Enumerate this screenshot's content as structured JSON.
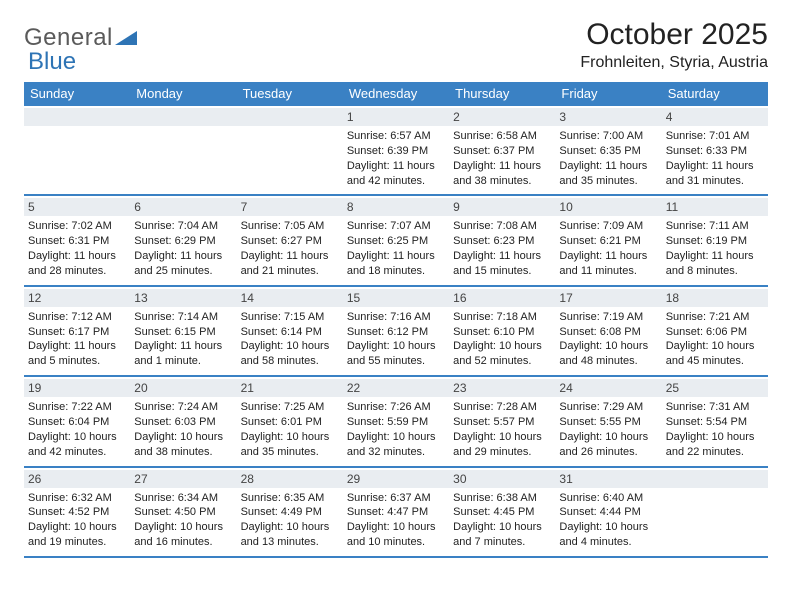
{
  "logo": {
    "text1": "General",
    "text2": "Blue"
  },
  "title": "October 2025",
  "location": "Frohnleiten, Styria, Austria",
  "colors": {
    "header_bg": "#3a81c4",
    "band_bg": "#e9edf1",
    "rule": "#3a81c4",
    "text": "#222222",
    "logo_gray": "#5a5a5a",
    "logo_blue": "#2e74b5"
  },
  "day_headers": [
    "Sunday",
    "Monday",
    "Tuesday",
    "Wednesday",
    "Thursday",
    "Friday",
    "Saturday"
  ],
  "weeks": [
    [
      {
        "n": "",
        "sr": "",
        "ss": "",
        "dl": ""
      },
      {
        "n": "",
        "sr": "",
        "ss": "",
        "dl": ""
      },
      {
        "n": "",
        "sr": "",
        "ss": "",
        "dl": ""
      },
      {
        "n": "1",
        "sr": "Sunrise: 6:57 AM",
        "ss": "Sunset: 6:39 PM",
        "dl": "Daylight: 11 hours and 42 minutes."
      },
      {
        "n": "2",
        "sr": "Sunrise: 6:58 AM",
        "ss": "Sunset: 6:37 PM",
        "dl": "Daylight: 11 hours and 38 minutes."
      },
      {
        "n": "3",
        "sr": "Sunrise: 7:00 AM",
        "ss": "Sunset: 6:35 PM",
        "dl": "Daylight: 11 hours and 35 minutes."
      },
      {
        "n": "4",
        "sr": "Sunrise: 7:01 AM",
        "ss": "Sunset: 6:33 PM",
        "dl": "Daylight: 11 hours and 31 minutes."
      }
    ],
    [
      {
        "n": "5",
        "sr": "Sunrise: 7:02 AM",
        "ss": "Sunset: 6:31 PM",
        "dl": "Daylight: 11 hours and 28 minutes."
      },
      {
        "n": "6",
        "sr": "Sunrise: 7:04 AM",
        "ss": "Sunset: 6:29 PM",
        "dl": "Daylight: 11 hours and 25 minutes."
      },
      {
        "n": "7",
        "sr": "Sunrise: 7:05 AM",
        "ss": "Sunset: 6:27 PM",
        "dl": "Daylight: 11 hours and 21 minutes."
      },
      {
        "n": "8",
        "sr": "Sunrise: 7:07 AM",
        "ss": "Sunset: 6:25 PM",
        "dl": "Daylight: 11 hours and 18 minutes."
      },
      {
        "n": "9",
        "sr": "Sunrise: 7:08 AM",
        "ss": "Sunset: 6:23 PM",
        "dl": "Daylight: 11 hours and 15 minutes."
      },
      {
        "n": "10",
        "sr": "Sunrise: 7:09 AM",
        "ss": "Sunset: 6:21 PM",
        "dl": "Daylight: 11 hours and 11 minutes."
      },
      {
        "n": "11",
        "sr": "Sunrise: 7:11 AM",
        "ss": "Sunset: 6:19 PM",
        "dl": "Daylight: 11 hours and 8 minutes."
      }
    ],
    [
      {
        "n": "12",
        "sr": "Sunrise: 7:12 AM",
        "ss": "Sunset: 6:17 PM",
        "dl": "Daylight: 11 hours and 5 minutes."
      },
      {
        "n": "13",
        "sr": "Sunrise: 7:14 AM",
        "ss": "Sunset: 6:15 PM",
        "dl": "Daylight: 11 hours and 1 minute."
      },
      {
        "n": "14",
        "sr": "Sunrise: 7:15 AM",
        "ss": "Sunset: 6:14 PM",
        "dl": "Daylight: 10 hours and 58 minutes."
      },
      {
        "n": "15",
        "sr": "Sunrise: 7:16 AM",
        "ss": "Sunset: 6:12 PM",
        "dl": "Daylight: 10 hours and 55 minutes."
      },
      {
        "n": "16",
        "sr": "Sunrise: 7:18 AM",
        "ss": "Sunset: 6:10 PM",
        "dl": "Daylight: 10 hours and 52 minutes."
      },
      {
        "n": "17",
        "sr": "Sunrise: 7:19 AM",
        "ss": "Sunset: 6:08 PM",
        "dl": "Daylight: 10 hours and 48 minutes."
      },
      {
        "n": "18",
        "sr": "Sunrise: 7:21 AM",
        "ss": "Sunset: 6:06 PM",
        "dl": "Daylight: 10 hours and 45 minutes."
      }
    ],
    [
      {
        "n": "19",
        "sr": "Sunrise: 7:22 AM",
        "ss": "Sunset: 6:04 PM",
        "dl": "Daylight: 10 hours and 42 minutes."
      },
      {
        "n": "20",
        "sr": "Sunrise: 7:24 AM",
        "ss": "Sunset: 6:03 PM",
        "dl": "Daylight: 10 hours and 38 minutes."
      },
      {
        "n": "21",
        "sr": "Sunrise: 7:25 AM",
        "ss": "Sunset: 6:01 PM",
        "dl": "Daylight: 10 hours and 35 minutes."
      },
      {
        "n": "22",
        "sr": "Sunrise: 7:26 AM",
        "ss": "Sunset: 5:59 PM",
        "dl": "Daylight: 10 hours and 32 minutes."
      },
      {
        "n": "23",
        "sr": "Sunrise: 7:28 AM",
        "ss": "Sunset: 5:57 PM",
        "dl": "Daylight: 10 hours and 29 minutes."
      },
      {
        "n": "24",
        "sr": "Sunrise: 7:29 AM",
        "ss": "Sunset: 5:55 PM",
        "dl": "Daylight: 10 hours and 26 minutes."
      },
      {
        "n": "25",
        "sr": "Sunrise: 7:31 AM",
        "ss": "Sunset: 5:54 PM",
        "dl": "Daylight: 10 hours and 22 minutes."
      }
    ],
    [
      {
        "n": "26",
        "sr": "Sunrise: 6:32 AM",
        "ss": "Sunset: 4:52 PM",
        "dl": "Daylight: 10 hours and 19 minutes."
      },
      {
        "n": "27",
        "sr": "Sunrise: 6:34 AM",
        "ss": "Sunset: 4:50 PM",
        "dl": "Daylight: 10 hours and 16 minutes."
      },
      {
        "n": "28",
        "sr": "Sunrise: 6:35 AM",
        "ss": "Sunset: 4:49 PM",
        "dl": "Daylight: 10 hours and 13 minutes."
      },
      {
        "n": "29",
        "sr": "Sunrise: 6:37 AM",
        "ss": "Sunset: 4:47 PM",
        "dl": "Daylight: 10 hours and 10 minutes."
      },
      {
        "n": "30",
        "sr": "Sunrise: 6:38 AM",
        "ss": "Sunset: 4:45 PM",
        "dl": "Daylight: 10 hours and 7 minutes."
      },
      {
        "n": "31",
        "sr": "Sunrise: 6:40 AM",
        "ss": "Sunset: 4:44 PM",
        "dl": "Daylight: 10 hours and 4 minutes."
      },
      {
        "n": "",
        "sr": "",
        "ss": "",
        "dl": ""
      }
    ]
  ]
}
